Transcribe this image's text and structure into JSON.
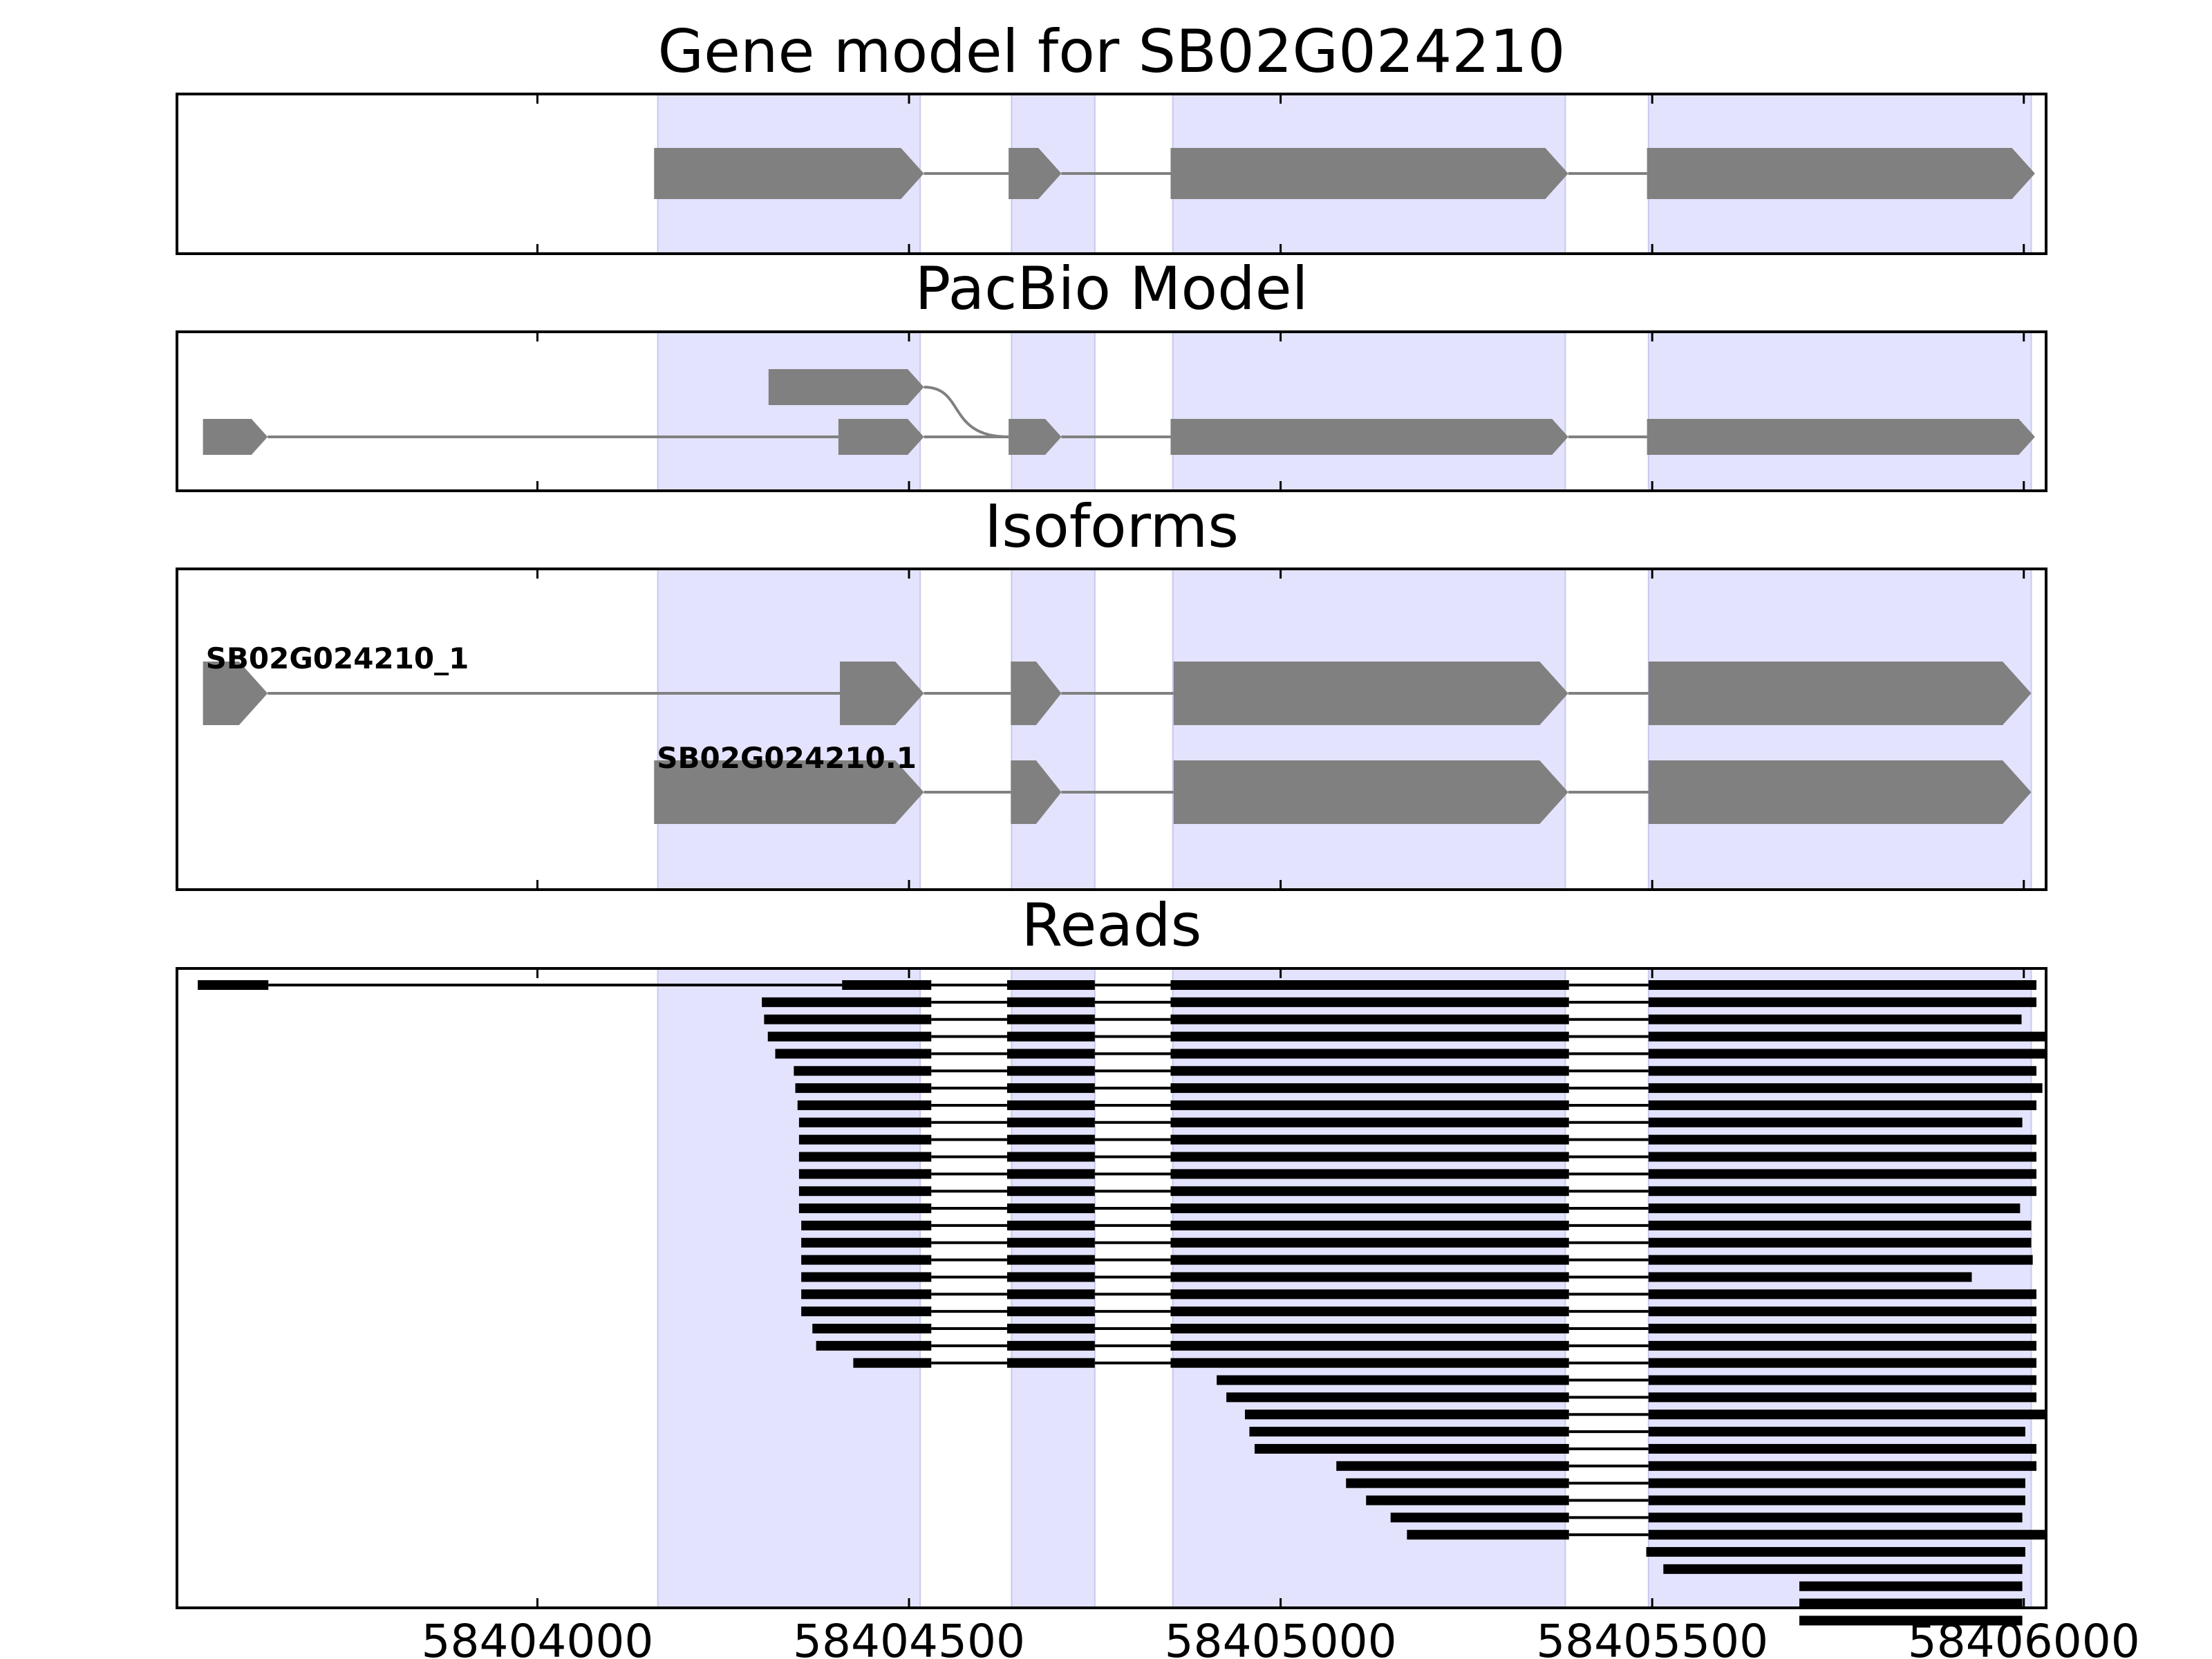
{
  "chart_data": {
    "type": "gene-track",
    "x_range": [
      58403515,
      58406030
    ],
    "x_ticks": [
      {
        "value": 58404000,
        "label": "58404000"
      },
      {
        "value": 58404500,
        "label": "58404500"
      },
      {
        "value": 58405000,
        "label": "58405000"
      },
      {
        "value": 58405500,
        "label": "58405500"
      },
      {
        "value": 58406000,
        "label": "58406000"
      }
    ],
    "highlight_regions": [
      [
        58404162,
        58404515
      ],
      [
        58404638,
        58404750
      ],
      [
        58404855,
        58405383
      ],
      [
        58405495,
        58406010
      ]
    ],
    "panels": [
      {
        "title": "Gene model for SB02G024210",
        "models": [
          {
            "label": "",
            "exons": [
              [
                58404157,
                58404520
              ],
              [
                58404634,
                58404705
              ],
              [
                58404852,
                58405387
              ],
              [
                58405493,
                58406015
              ]
            ]
          }
        ]
      },
      {
        "title": "PacBio Model",
        "models": [
          {
            "label": "",
            "exons": [
              [
                58404311,
                58404520
              ]
            ],
            "joins_next_at": [
              58404634,
              58404705
            ]
          },
          {
            "label": "",
            "exons": [
              [
                58403550,
                58403637
              ],
              [
                58404405,
                58404520
              ],
              [
                58404634,
                58404705
              ],
              [
                58404852,
                58405387
              ],
              [
                58405493,
                58406015
              ]
            ]
          }
        ]
      },
      {
        "title": "Isoforms",
        "models": [
          {
            "label": "SB02G024210_1",
            "exons": [
              [
                58403550,
                58403637
              ],
              [
                58404407,
                58404520
              ],
              [
                58404637,
                58404705
              ],
              [
                58404856,
                58405387
              ],
              [
                58405495,
                58406010
              ]
            ]
          },
          {
            "label": "SB02G024210.1",
            "exons": [
              [
                58404157,
                58404520
              ],
              [
                58404637,
                58404705
              ],
              [
                58404856,
                58405387
              ],
              [
                58405495,
                58406010
              ]
            ]
          }
        ]
      }
    ],
    "reads_panel": {
      "title": "Reads",
      "reads": [
        [
          [
            58403543,
            58403638
          ],
          [
            58404410,
            58404530
          ],
          [
            58404632,
            58404750
          ],
          [
            58404852,
            58405388
          ],
          [
            58405495,
            58406017
          ]
        ],
        [
          [
            58404302,
            58404530
          ],
          [
            58404632,
            58404750
          ],
          [
            58404852,
            58405388
          ],
          [
            58405495,
            58406017
          ]
        ],
        [
          [
            58404305,
            58404530
          ],
          [
            58404632,
            58404750
          ],
          [
            58404852,
            58405388
          ],
          [
            58405495,
            58405997
          ]
        ],
        [
          [
            58404310,
            58404530
          ],
          [
            58404632,
            58404750
          ],
          [
            58404852,
            58405388
          ],
          [
            58405495,
            58406030
          ]
        ],
        [
          [
            58404320,
            58404530
          ],
          [
            58404632,
            58404750
          ],
          [
            58404852,
            58405388
          ],
          [
            58405495,
            58406060
          ]
        ],
        [
          [
            58404345,
            58404530
          ],
          [
            58404632,
            58404750
          ],
          [
            58404852,
            58405388
          ],
          [
            58405495,
            58406017
          ]
        ],
        [
          [
            58404347,
            58404530
          ],
          [
            58404632,
            58404750
          ],
          [
            58404852,
            58405388
          ],
          [
            58405495,
            58406025
          ]
        ],
        [
          [
            58404350,
            58404530
          ],
          [
            58404632,
            58404750
          ],
          [
            58404852,
            58405388
          ],
          [
            58405495,
            58406017
          ]
        ],
        [
          [
            58404352,
            58404530
          ],
          [
            58404632,
            58404750
          ],
          [
            58404852,
            58405388
          ],
          [
            58405495,
            58405998
          ]
        ],
        [
          [
            58404352,
            58404530
          ],
          [
            58404632,
            58404750
          ],
          [
            58404852,
            58405388
          ],
          [
            58405495,
            58406017
          ]
        ],
        [
          [
            58404352,
            58404530
          ],
          [
            58404632,
            58404750
          ],
          [
            58404852,
            58405388
          ],
          [
            58405495,
            58406017
          ]
        ],
        [
          [
            58404352,
            58404530
          ],
          [
            58404632,
            58404750
          ],
          [
            58404852,
            58405388
          ],
          [
            58405495,
            58406017
          ]
        ],
        [
          [
            58404352,
            58404530
          ],
          [
            58404632,
            58404750
          ],
          [
            58404852,
            58405388
          ],
          [
            58405495,
            58406017
          ]
        ],
        [
          [
            58404352,
            58404530
          ],
          [
            58404632,
            58404750
          ],
          [
            58404852,
            58405388
          ],
          [
            58405495,
            58405995
          ]
        ],
        [
          [
            58404355,
            58404530
          ],
          [
            58404632,
            58404750
          ],
          [
            58404852,
            58405388
          ],
          [
            58405495,
            58406010
          ]
        ],
        [
          [
            58404355,
            58404530
          ],
          [
            58404632,
            58404750
          ],
          [
            58404852,
            58405388
          ],
          [
            58405495,
            58406010
          ]
        ],
        [
          [
            58404355,
            58404530
          ],
          [
            58404632,
            58404750
          ],
          [
            58404852,
            58405388
          ],
          [
            58405495,
            58406012
          ]
        ],
        [
          [
            58404355,
            58404530
          ],
          [
            58404632,
            58404750
          ],
          [
            58404852,
            58405388
          ],
          [
            58405495,
            58405930
          ]
        ],
        [
          [
            58404355,
            58404530
          ],
          [
            58404632,
            58404750
          ],
          [
            58404852,
            58405388
          ],
          [
            58405495,
            58406017
          ]
        ],
        [
          [
            58404355,
            58404530
          ],
          [
            58404632,
            58404750
          ],
          [
            58404852,
            58405388
          ],
          [
            58405495,
            58406017
          ]
        ],
        [
          [
            58404370,
            58404530
          ],
          [
            58404632,
            58404750
          ],
          [
            58404852,
            58405388
          ],
          [
            58405495,
            58406017
          ]
        ],
        [
          [
            58404375,
            58404530
          ],
          [
            58404632,
            58404750
          ],
          [
            58404852,
            58405388
          ],
          [
            58405495,
            58406017
          ]
        ],
        [
          [
            58404425,
            58404530
          ],
          [
            58404632,
            58404750
          ],
          [
            58404852,
            58405388
          ],
          [
            58405495,
            58406017
          ]
        ],
        [
          [
            58404914,
            58405388
          ],
          [
            58405495,
            58406017
          ]
        ],
        [
          [
            58404927,
            58405388
          ],
          [
            58405495,
            58406017
          ]
        ],
        [
          [
            58404952,
            58405388
          ],
          [
            58405495,
            58406030
          ]
        ],
        [
          [
            58404958,
            58405388
          ],
          [
            58405495,
            58406002
          ]
        ],
        [
          [
            58404965,
            58405388
          ],
          [
            58405495,
            58406017
          ]
        ],
        [
          [
            58405075,
            58405388
          ],
          [
            58405495,
            58406017
          ]
        ],
        [
          [
            58405088,
            58405388
          ],
          [
            58405495,
            58406002
          ]
        ],
        [
          [
            58405115,
            58405388
          ],
          [
            58405495,
            58406002
          ]
        ],
        [
          [
            58405148,
            58405388
          ],
          [
            58405495,
            58405998
          ]
        ],
        [
          [
            58405170,
            58405388
          ],
          [
            58405495,
            58406060
          ]
        ],
        [
          [
            58405492,
            58406002
          ]
        ],
        [
          [
            58405515,
            58405998
          ]
        ],
        [
          [
            58405698,
            58405998
          ]
        ],
        [
          [
            58405698,
            58405998
          ]
        ],
        [
          [
            58405698,
            58405998
          ]
        ]
      ]
    },
    "colors": {
      "exon": "#808080",
      "intron": "#808080",
      "read": "#000000",
      "highlight": "#e3e3fd",
      "highlight_edge": "#c8c8ee",
      "axes": "#000000"
    }
  }
}
